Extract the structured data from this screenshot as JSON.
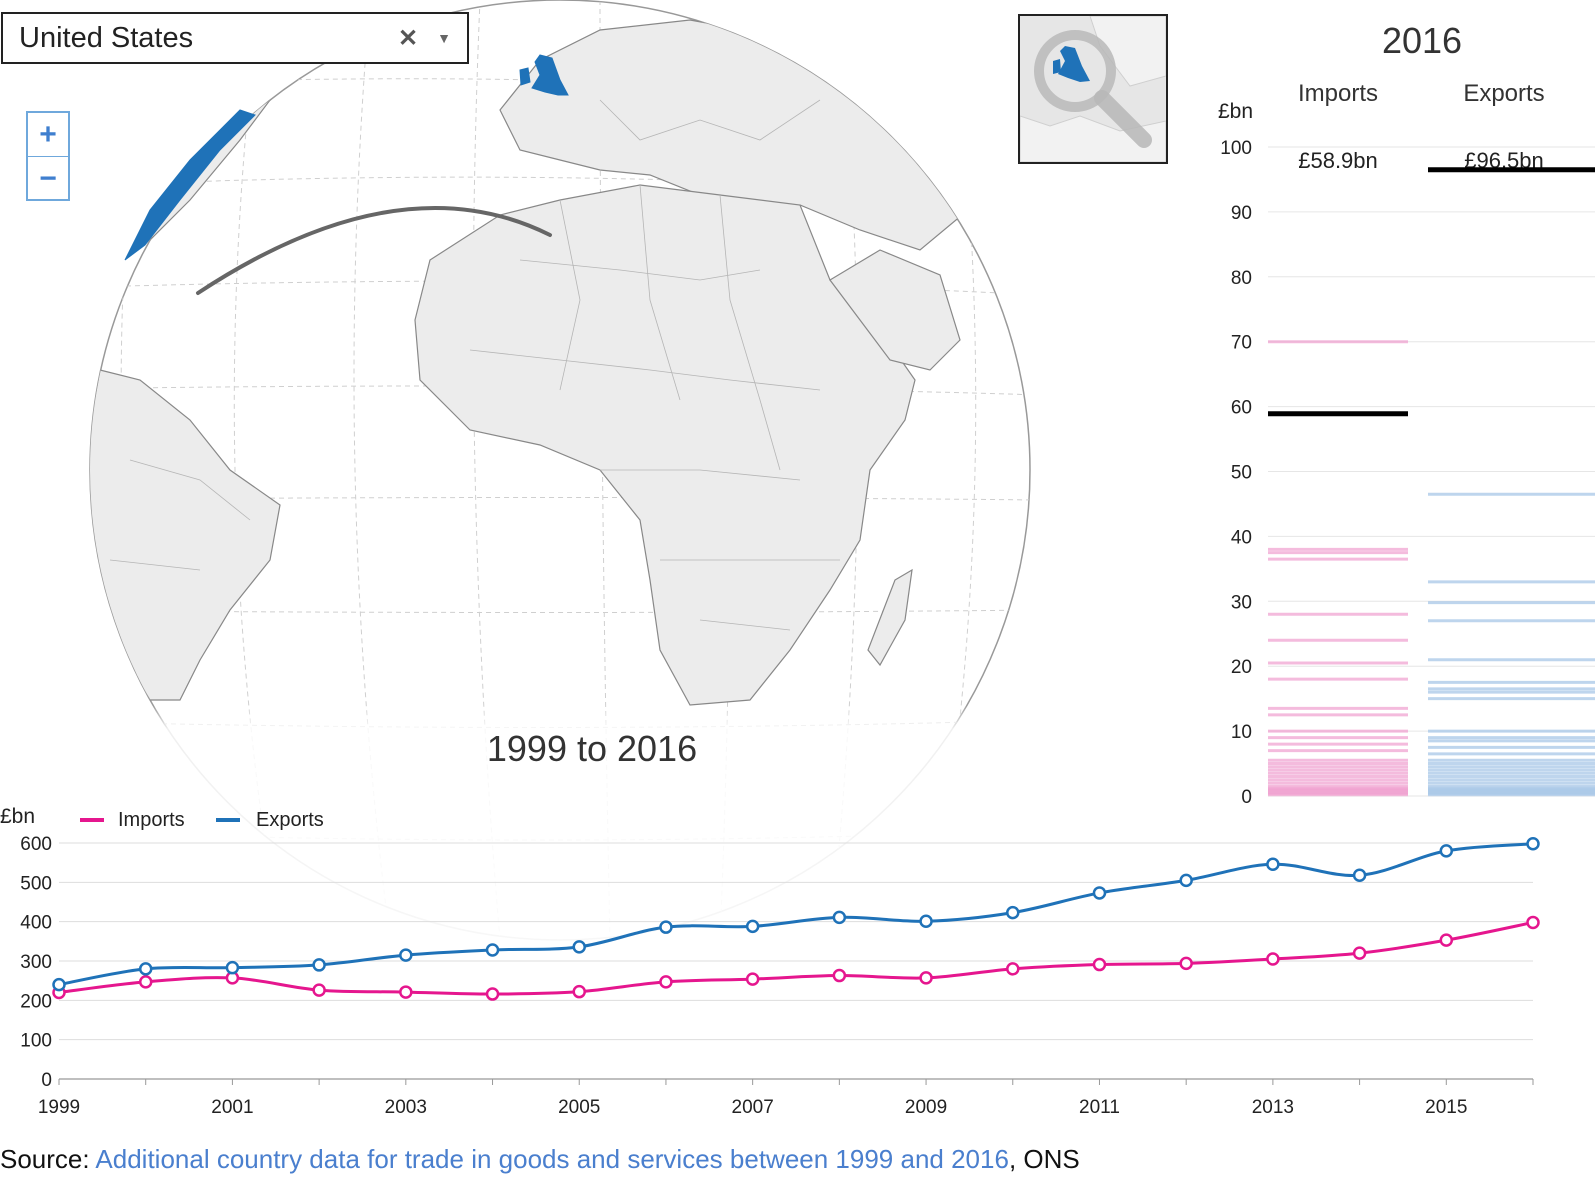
{
  "country_select": {
    "value": "United States",
    "clear_glyph": "✕",
    "arrow_glyph": "▼"
  },
  "zoom": {
    "in_label": "+",
    "out_label": "−"
  },
  "icons": {
    "zoom_in": "plus-icon",
    "zoom_out": "minus-icon",
    "inset": "magnifier-icon",
    "clear": "close-icon",
    "dropdown": "chevron-down-icon"
  },
  "year_panel": {
    "title": "2016",
    "unit": "£bn",
    "imports_label": "Imports",
    "exports_label": "Exports",
    "imports_value_label": "£58.9bn",
    "exports_value_label": "£96.5bn",
    "imports_value": 58.9,
    "exports_value": 96.5,
    "ylim": [
      0,
      100
    ],
    "yticks": [
      0,
      10,
      20,
      30,
      40,
      50,
      60,
      70,
      80,
      90,
      100
    ],
    "other_imports": [
      70,
      38,
      37.5,
      36.5,
      28,
      24,
      20.5,
      18,
      13.5,
      12.5,
      10,
      9,
      8,
      7,
      5.5,
      5,
      4.5,
      4,
      3.5,
      3,
      2.5,
      2,
      1.5,
      1.2,
      1,
      0.8,
      0.6,
      0.4,
      0.2
    ],
    "other_exports": [
      46.5,
      33,
      29.8,
      27,
      21,
      17.5,
      16.5,
      16,
      15,
      10,
      9,
      8.5,
      7.5,
      6.5,
      5.5,
      5,
      4.5,
      4,
      3.5,
      3,
      2.5,
      2,
      1.5,
      1.2,
      1,
      0.8,
      0.6,
      0.4,
      0.2
    ],
    "colors": {
      "imports": "#f09fcf",
      "exports": "#a9c8e8",
      "highlight": "#000000"
    }
  },
  "chart_title": "1999 to 2016",
  "chart_data": {
    "type": "line",
    "ylabel": "£bn",
    "ylim": [
      0,
      600
    ],
    "yticks": [
      0,
      100,
      200,
      300,
      400,
      500,
      600
    ],
    "xticks": [
      1999,
      2001,
      2003,
      2005,
      2007,
      2009,
      2011,
      2013,
      2015
    ],
    "x": [
      1999,
      2000,
      2001,
      2002,
      2003,
      2004,
      2005,
      2006,
      2007,
      2008,
      2009,
      2010,
      2011,
      2012,
      2013,
      2014,
      2015,
      2016
    ],
    "series": [
      {
        "name": "Imports",
        "color": "#e5168e",
        "values": [
          220,
          247,
          257,
          226,
          221,
          216,
          222,
          247,
          254,
          263,
          257,
          280,
          291,
          294,
          305,
          320,
          353,
          398
        ]
      },
      {
        "name": "Exports",
        "color": "#1f72b8",
        "values": [
          240,
          280,
          283,
          290,
          315,
          328,
          336,
          386,
          388,
          411,
          401,
          423,
          473,
          505,
          546,
          518,
          580,
          598
        ]
      }
    ],
    "legend_position": "top-left",
    "grid": true
  },
  "source": {
    "prefix": "Source:",
    "link_text": "Additional country data for trade in goods and services between 1999 and 2016",
    "suffix": ", ONS"
  },
  "map_colors": {
    "land": "#ececec",
    "highlight": "#1f72b8",
    "route": "#666666"
  }
}
